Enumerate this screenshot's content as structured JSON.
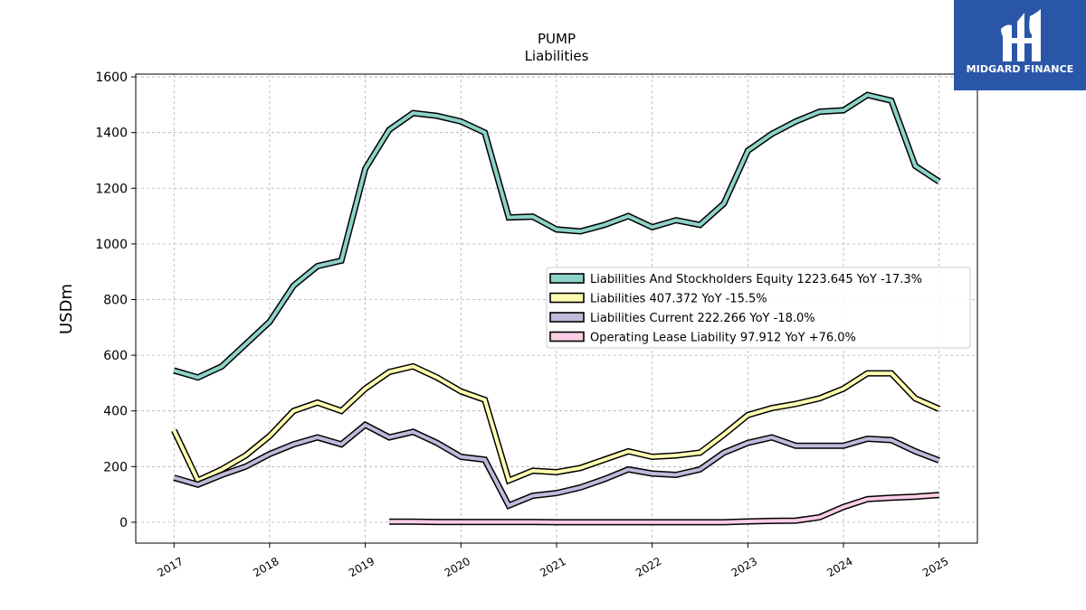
{
  "logo": {
    "text": "MIDGARD FINANCE",
    "background": "#2a56a8"
  },
  "chart_data": {
    "type": "line",
    "title": "PUMP",
    "subtitle": "Liabilities",
    "ylabel": "USDm",
    "xlabel": "",
    "xlim": [
      2016.6,
      2025.4
    ],
    "ylim": [
      -75,
      1610
    ],
    "yticks": [
      0,
      200,
      400,
      600,
      800,
      1000,
      1200,
      1400,
      1600
    ],
    "xticks": [
      2017,
      2018,
      2019,
      2020,
      2021,
      2022,
      2023,
      2024,
      2025
    ],
    "grid": true,
    "legend_position": "center-right",
    "series": [
      {
        "name": "Liabilities And Stockholders Equity",
        "legend": "Liabilities And Stockholders Equity  1223.645 YoY -17.3%",
        "color": "#8dd3c7",
        "x": [
          2017.0,
          2017.25,
          2017.5,
          2017.75,
          2018.0,
          2018.25,
          2018.5,
          2018.75,
          2019.0,
          2019.25,
          2019.5,
          2019.75,
          2020.0,
          2020.25,
          2020.5,
          2020.75,
          2021.0,
          2021.25,
          2021.5,
          2021.75,
          2022.0,
          2022.25,
          2022.5,
          2022.75,
          2023.0,
          2023.25,
          2023.5,
          2023.75,
          2024.0,
          2024.25,
          2024.5,
          2024.75,
          2025.0
        ],
        "y": [
          545,
          520,
          560,
          640,
          720,
          850,
          920,
          940,
          1270,
          1410,
          1470,
          1460,
          1440,
          1400,
          1095,
          1098,
          1052,
          1045,
          1068,
          1100,
          1060,
          1085,
          1068,
          1145,
          1335,
          1395,
          1440,
          1475,
          1480,
          1535,
          1515,
          1280,
          1224
        ]
      },
      {
        "name": "Liabilities",
        "legend": "Liabilities  407.372 YoY -15.5%",
        "color": "#ffffb3",
        "x": [
          2017.0,
          2017.25,
          2017.5,
          2017.75,
          2018.0,
          2018.25,
          2018.5,
          2018.75,
          2019.0,
          2019.25,
          2019.5,
          2019.75,
          2020.0,
          2020.25,
          2020.5,
          2020.75,
          2021.0,
          2021.25,
          2021.5,
          2021.75,
          2022.0,
          2022.25,
          2022.5,
          2022.75,
          2023.0,
          2023.25,
          2023.5,
          2023.75,
          2024.0,
          2024.25,
          2024.5,
          2024.75,
          2025.0
        ],
        "y": [
          330,
          150,
          190,
          240,
          310,
          400,
          430,
          400,
          480,
          540,
          560,
          520,
          470,
          440,
          150,
          185,
          180,
          195,
          225,
          255,
          235,
          240,
          250,
          315,
          385,
          410,
          425,
          445,
          480,
          535,
          535,
          445,
          407
        ]
      },
      {
        "name": "Liabilities Current",
        "legend": "Liabilities Current  222.266 YoY -18.0%",
        "color": "#bebada",
        "x": [
          2017.0,
          2017.25,
          2017.5,
          2017.75,
          2018.0,
          2018.25,
          2018.5,
          2018.75,
          2019.0,
          2019.25,
          2019.5,
          2019.75,
          2020.0,
          2020.25,
          2020.5,
          2020.75,
          2021.0,
          2021.25,
          2021.5,
          2021.75,
          2022.0,
          2022.25,
          2022.5,
          2022.75,
          2023.0,
          2023.25,
          2023.5,
          2023.75,
          2024.0,
          2024.25,
          2024.5,
          2024.75,
          2025.0
        ],
        "y": [
          160,
          135,
          170,
          200,
          245,
          280,
          305,
          280,
          350,
          305,
          325,
          285,
          235,
          225,
          60,
          95,
          105,
          125,
          155,
          190,
          175,
          170,
          190,
          250,
          285,
          305,
          275,
          275,
          275,
          300,
          295,
          255,
          222
        ]
      },
      {
        "name": "Operating Lease Liability",
        "legend": "Operating Lease Liability  97.912 YoY +76.0%",
        "color": "#fccde5",
        "x": [
          2019.25,
          2019.5,
          2019.75,
          2020.0,
          2020.25,
          2020.5,
          2020.75,
          2021.0,
          2021.25,
          2021.5,
          2021.75,
          2022.0,
          2022.25,
          2022.5,
          2022.75,
          2023.0,
          2023.25,
          2023.5,
          2023.75,
          2024.0,
          2024.25,
          2024.5,
          2024.75,
          2025.0
        ],
        "y": [
          2,
          2,
          1,
          1,
          1,
          1,
          1,
          0,
          0,
          0,
          0,
          0,
          0,
          0,
          0,
          3,
          5,
          6,
          18,
          55,
          83,
          88,
          92,
          98
        ]
      }
    ]
  }
}
